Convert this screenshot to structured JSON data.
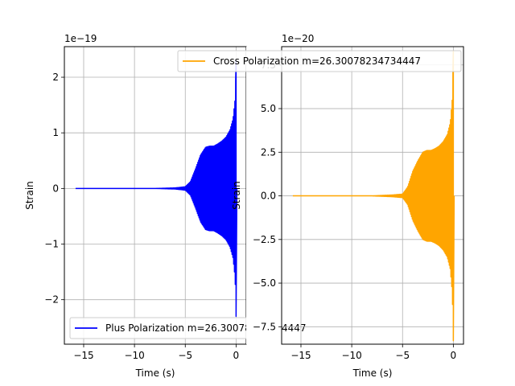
{
  "chart_data": [
    {
      "type": "line",
      "xlabel": "Time (s)",
      "ylabel": "Strain",
      "offset_label": "1e−19",
      "xlim": [
        -16.9,
        1.0
      ],
      "ylim": [
        -2.8,
        2.55
      ],
      "xticks": [
        -15,
        -10,
        -5,
        0
      ],
      "xtick_labels": [
        "−15",
        "−10",
        "−5",
        "0"
      ],
      "yticks": [
        -2,
        -1,
        0,
        1,
        2
      ],
      "ytick_labels": [
        "−2",
        "−1",
        "0",
        "1",
        "2"
      ],
      "grid": true,
      "legend_position": "lower-left",
      "series": [
        {
          "name": "Plus Polarization m=26.30078234734447",
          "color": "#0000ff",
          "x_start": -15.8,
          "x_end": 0.0,
          "envelope_t": [
            -15.8,
            -8.0,
            -6.0,
            -5.0,
            -4.5,
            -4.0,
            -3.5,
            -3.0,
            -2.6,
            -2.2,
            -1.8,
            -1.4,
            -1.0,
            -0.6,
            -0.3,
            -0.1,
            -0.03,
            0.0
          ],
          "envelope_amp": [
            0.0,
            0.0,
            0.01,
            0.03,
            0.12,
            0.35,
            0.6,
            0.74,
            0.76,
            0.76,
            0.8,
            0.85,
            0.92,
            1.05,
            1.25,
            1.6,
            2.0,
            2.3
          ]
        }
      ]
    },
    {
      "type": "line",
      "xlabel": "Time (s)",
      "ylabel": "Strain",
      "offset_label": "1e−20",
      "xlim": [
        -16.9,
        1.0
      ],
      "ylim": [
        -8.5,
        8.55
      ],
      "xticks": [
        -15,
        -10,
        -5,
        0
      ],
      "xtick_labels": [
        "−15",
        "−10",
        "−5",
        "0"
      ],
      "yticks": [
        -7.5,
        -5.0,
        -2.5,
        0.0,
        2.5,
        5.0,
        7.5
      ],
      "ytick_labels": [
        "−7.5",
        "−5.0",
        "−2.5",
        "0.0",
        "2.5",
        "5.0",
        "7.5"
      ],
      "grid": true,
      "legend_position": "upper-right",
      "series": [
        {
          "name": "Cross Polarization m=26.30078234734447",
          "color": "#ffa500",
          "x_start": -15.8,
          "x_end": 0.0,
          "envelope_t": [
            -15.8,
            -8.0,
            -6.0,
            -5.0,
            -4.5,
            -4.0,
            -3.5,
            -3.0,
            -2.6,
            -2.2,
            -1.8,
            -1.4,
            -1.0,
            -0.6,
            -0.3,
            -0.1,
            -0.03,
            0.0
          ],
          "envelope_amp": [
            0.0,
            0.0,
            0.05,
            0.1,
            0.5,
            1.4,
            2.0,
            2.5,
            2.6,
            2.6,
            2.7,
            2.85,
            3.1,
            3.5,
            4.2,
            5.6,
            7.6,
            8.3
          ]
        }
      ]
    }
  ]
}
